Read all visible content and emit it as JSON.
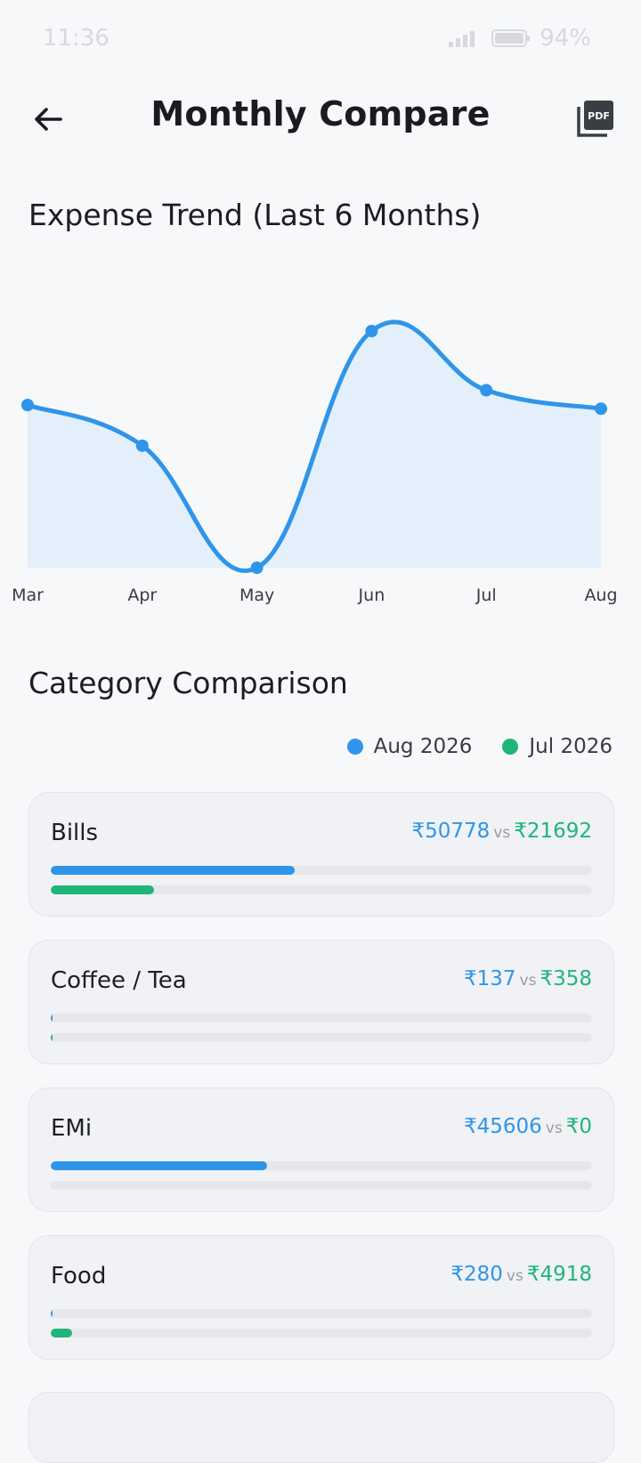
{
  "status_bar": {
    "time": "11:36",
    "battery": "94%"
  },
  "header": {
    "title": "Monthly Compare",
    "back_icon": "arrow-left-icon",
    "pdf_icon": "pdf-export-icon",
    "pdf_label": "PDF"
  },
  "trend": {
    "title": "Expense Trend (Last 6 Months)",
    "chart_data": {
      "type": "area",
      "categories": [
        "Mar",
        "Apr",
        "May",
        "Jun",
        "Jul",
        "Aug"
      ],
      "series": [
        {
          "values": [
            44000,
            33000,
            0,
            64000,
            48000,
            43000
          ]
        }
      ],
      "color": "#2f95ea",
      "fill": "#e3f0fc",
      "grid": false
    }
  },
  "comparison": {
    "title": "Category Comparison",
    "legend": [
      {
        "label": "Aug 2026",
        "color": "#2f95ea"
      },
      {
        "label": "Jul 2026",
        "color": "#1fb57a"
      }
    ],
    "vs_label": "vs",
    "categories": [
      {
        "name": "Bills",
        "current": "₹50778",
        "previous": "₹21692",
        "current_fraction": 0.45,
        "previous_fraction": 0.19
      },
      {
        "name": "Coffee / Tea",
        "current": "₹137",
        "previous": "₹358",
        "current_fraction": 0.002,
        "previous_fraction": 0.004
      },
      {
        "name": "EMi",
        "current": "₹45606",
        "previous": "₹0",
        "current_fraction": 0.4,
        "previous_fraction": 0
      },
      {
        "name": "Food",
        "current": "₹280",
        "previous": "₹4918",
        "current_fraction": 0.003,
        "previous_fraction": 0.04
      }
    ]
  }
}
